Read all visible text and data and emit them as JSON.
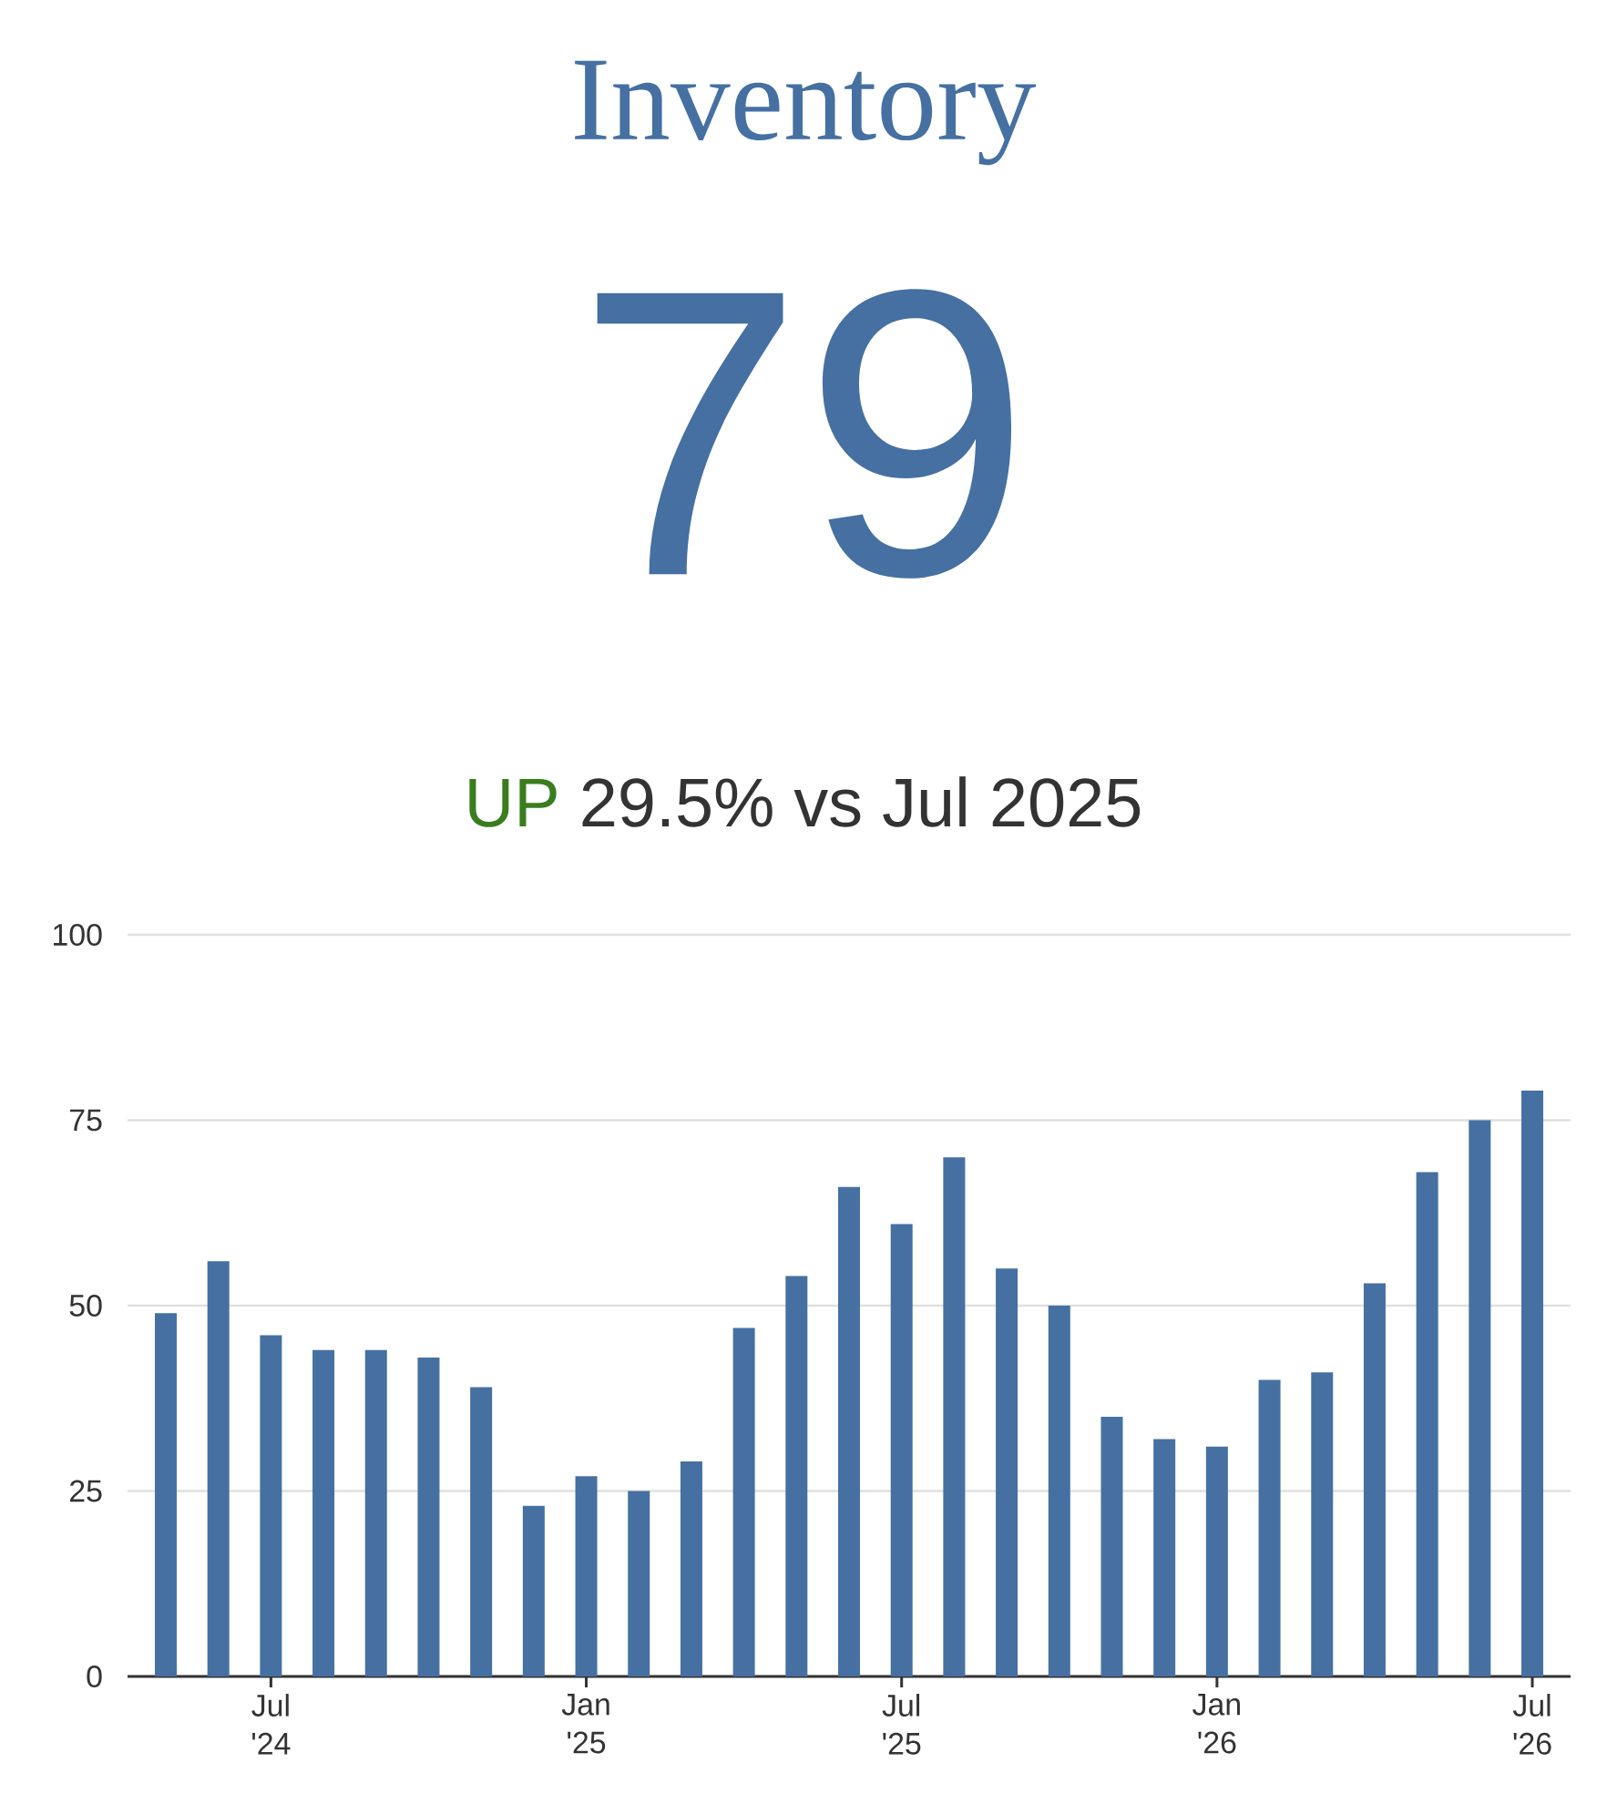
{
  "chart_data": {
    "type": "bar",
    "title": "Inventory",
    "subtitle": "79",
    "annotations": [
      "UP",
      "29.5% vs Jul 2025"
    ],
    "categories": [
      null,
      null,
      "Jul '24",
      null,
      null,
      null,
      null,
      null,
      "Jan '25",
      null,
      null,
      null,
      null,
      null,
      "Jul '25",
      null,
      null,
      null,
      null,
      null,
      "Jan '26",
      null,
      null,
      null,
      null,
      null,
      "Jul '26"
    ],
    "values": [
      49,
      56,
      46,
      44,
      44,
      43,
      39,
      23,
      27,
      25,
      29,
      47,
      54,
      66,
      61,
      70,
      55,
      50,
      35,
      32,
      31,
      40,
      41,
      53,
      68,
      75,
      79
    ],
    "color": "#4570a1",
    "ylim": [
      0,
      100
    ],
    "yticks": [
      0,
      25,
      50,
      75,
      100
    ],
    "grid": "y"
  }
}
